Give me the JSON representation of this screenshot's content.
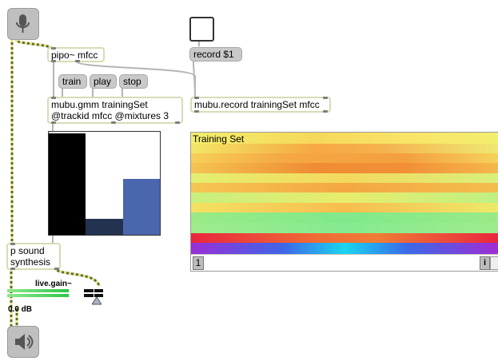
{
  "objects": {
    "pipo": "pipo~ mfcc",
    "record_msg": "record $1",
    "train_msg": "train",
    "play_msg": "play",
    "stop_msg": "stop",
    "gmm_line1": "mubu.gmm trainingSet",
    "gmm_line2": "@trackid mfcc @mixtures 3",
    "record_obj": "mubu.record trainingSet mfcc",
    "psound_line1": "p sound",
    "psound_line2": "synthesis"
  },
  "gain": {
    "label": "live.gain~",
    "value": "0.0 dB",
    "meter_level": 0.8
  },
  "training_view": {
    "title": "Training Set",
    "buffer_index": "1",
    "info_button": "i"
  },
  "gmm_bars": {
    "values": [
      1.0,
      0.16,
      0.55
    ],
    "colors": [
      "#000000",
      "#23324f",
      "#4a67ad"
    ]
  },
  "icons": {
    "adc": "microphone-icon",
    "dac": "speaker-icon",
    "toggle": "toggle-box"
  }
}
